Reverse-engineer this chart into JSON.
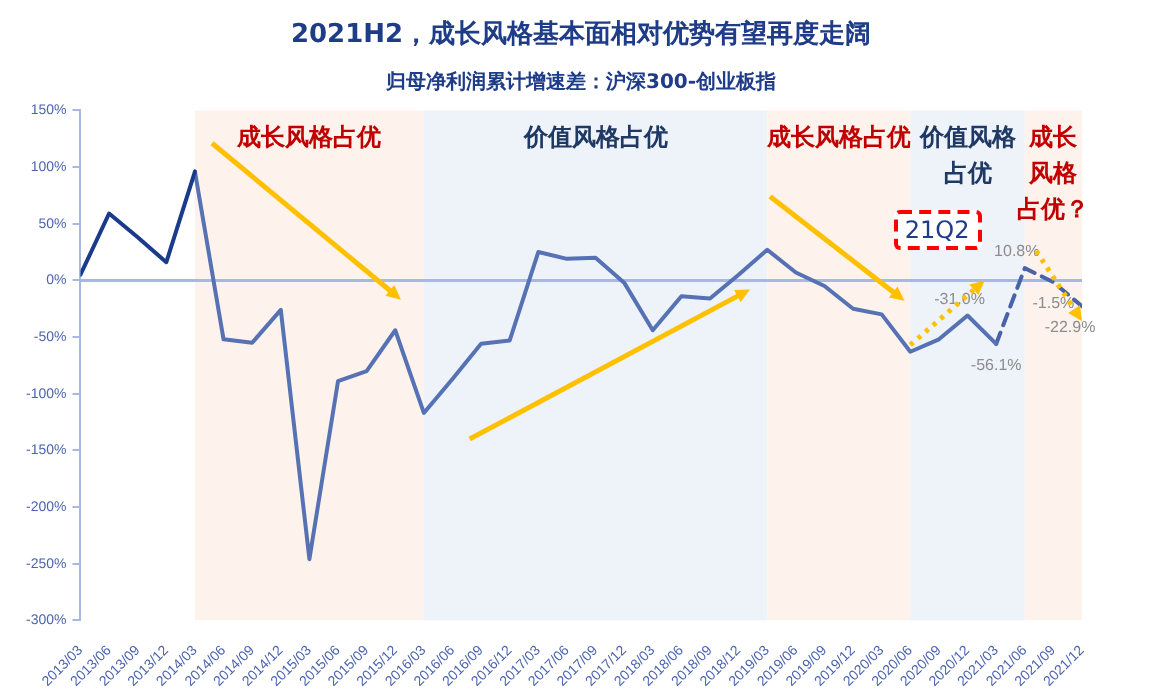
{
  "chart_data": {
    "type": "line",
    "title": "2021H2，成长风格基本面相对优势有望再度走阔",
    "subtitle": "归母净利润累计增速差：沪深300-创业板指",
    "categories": [
      "2013/03",
      "2013/06",
      "2013/09",
      "2013/12",
      "2014/03",
      "2014/06",
      "2014/09",
      "2014/12",
      "2015/03",
      "2015/06",
      "2015/09",
      "2015/12",
      "2016/03",
      "2016/06",
      "2016/09",
      "2016/12",
      "2017/03",
      "2017/06",
      "2017/09",
      "2017/12",
      "2018/03",
      "2018/06",
      "2018/09",
      "2018/12",
      "2019/03",
      "2019/06",
      "2019/09",
      "2019/12",
      "2020/03",
      "2020/06",
      "2020/09",
      "2020/12",
      "2021/03",
      "2021/06",
      "2021/09",
      "2021/12"
    ],
    "series": [
      {
        "color": "#1a3a8c",
        "values": [
          5,
          59,
          38,
          16,
          96,
          null,
          null,
          null,
          null,
          null,
          null,
          null,
          null,
          null,
          null,
          null,
          null,
          null,
          null,
          null,
          null,
          null,
          null,
          null,
          null,
          null,
          null,
          null,
          null,
          null,
          null,
          null,
          null,
          null,
          null,
          null
        ]
      },
      {
        "color": "#5672b4",
        "values": [
          null,
          null,
          null,
          null,
          96,
          -52,
          -55,
          -26,
          -246,
          -89,
          -80,
          -44,
          -117,
          -87,
          -56,
          -53,
          25,
          19,
          20,
          -2,
          -44,
          -14,
          -16,
          5,
          27,
          7,
          -5,
          -25,
          -30,
          -63,
          -52,
          -31.0,
          -56.1,
          null,
          null,
          null
        ],
        "value_labels": [
          null,
          null,
          null,
          null,
          null,
          null,
          null,
          null,
          null,
          null,
          null,
          null,
          null,
          null,
          null,
          null,
          null,
          null,
          null,
          null,
          null,
          null,
          null,
          null,
          null,
          null,
          null,
          null,
          null,
          null,
          null,
          "-31.0%",
          "-56.1%",
          null,
          null,
          null
        ]
      },
      {
        "color": "#4a62a8",
        "line_style": "dashed",
        "values": [
          null,
          null,
          null,
          null,
          null,
          null,
          null,
          null,
          null,
          null,
          null,
          null,
          null,
          null,
          null,
          null,
          null,
          null,
          null,
          null,
          null,
          null,
          null,
          null,
          null,
          null,
          null,
          null,
          null,
          null,
          null,
          null,
          -56.1,
          10.8,
          -1.5,
          -22.9
        ],
        "value_labels": [
          null,
          null,
          null,
          null,
          null,
          null,
          null,
          null,
          null,
          null,
          null,
          null,
          null,
          null,
          null,
          null,
          null,
          null,
          null,
          null,
          null,
          null,
          null,
          null,
          null,
          null,
          null,
          null,
          null,
          null,
          null,
          null,
          null,
          "10.8%",
          "-1.5%",
          "-22.9%"
        ]
      }
    ],
    "ylim": [
      -300,
      150
    ],
    "yticks": [
      {
        "value": -300,
        "label": "-300%"
      },
      {
        "value": -250,
        "label": "-250%"
      },
      {
        "value": -200,
        "label": "-200%"
      },
      {
        "value": -150,
        "label": "-150%"
      },
      {
        "value": -100,
        "label": "-100%"
      },
      {
        "value": -50,
        "label": "-50%"
      },
      {
        "value": 0,
        "label": "0%"
      },
      {
        "value": 50,
        "label": "50%"
      },
      {
        "value": 100,
        "label": "100%"
      },
      {
        "value": 150,
        "label": "150%"
      }
    ],
    "grid": false,
    "legend": false,
    "marker": "none",
    "ref_lines": [
      {
        "axis": "y",
        "value": 0,
        "color": "#a9b8e0"
      }
    ],
    "bands": [
      {
        "axis": "x",
        "from": "2014/03",
        "to": "2016/03",
        "label": "成长风格占优",
        "color": "#fdf3ec"
      },
      {
        "axis": "x",
        "from": "2016/03",
        "to": "2019/03",
        "label": "价值风格占优",
        "color": "#eef3fa"
      },
      {
        "axis": "x",
        "from": "2019/03",
        "to": "2020/06",
        "label": "成长风格占优",
        "color": "#fdf3ec"
      },
      {
        "axis": "x",
        "from": "2020/06",
        "to": "2021/06",
        "label": "价值风格占优",
        "color": "#eef3fa"
      },
      {
        "axis": "x",
        "from": "2021/06",
        "to": "2021/12",
        "label": "成长风格占优？",
        "color": "#fdf3ec"
      }
    ],
    "annotations": [
      "21Q2"
    ]
  }
}
